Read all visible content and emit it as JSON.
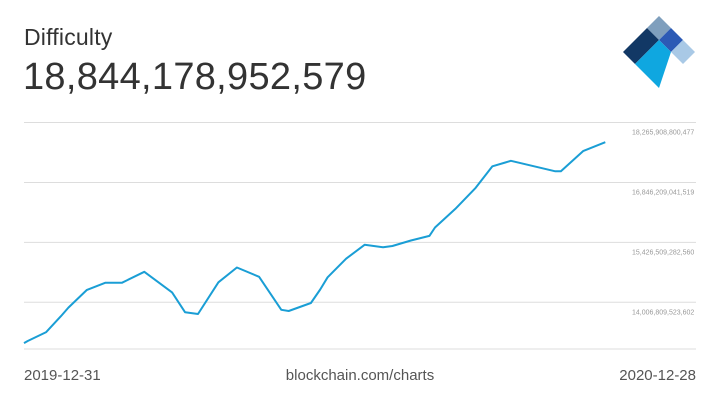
{
  "header": {
    "title": "Difficulty",
    "current_value": "18,844,178,952,579"
  },
  "footer": {
    "start_date": "2019-12-31",
    "source": "blockchain.com/charts",
    "end_date": "2020-12-28"
  },
  "logo": {
    "icon": "blockchain-logo-icon",
    "colors": [
      "#123865",
      "#7f9fbd",
      "#2c5ab5",
      "#0fa7e0",
      "#a9c9e6"
    ]
  },
  "chart_data": {
    "type": "line",
    "x_type": "date",
    "xlim": [
      "2019-12-31",
      "2020-12-28"
    ],
    "ylim": [
      12900000000000,
      18800000000000
    ],
    "gridlines": [
      18265908800477,
      16846209041519,
      15426509282560,
      14006809523602
    ],
    "tick_labels": [
      "18,265,908,800,477",
      "16,846,209,041,519",
      "15,426,509,282,560",
      "14,006,809,523,602"
    ],
    "line_color": "#1a9ed5",
    "grid": true,
    "series": [
      {
        "x": [
          "2019-12-31",
          "2020-01-02",
          "2020-01-12",
          "2020-01-20",
          "2020-01-24",
          "2020-02-03",
          "2020-02-13",
          "2020-02-22",
          "2020-03-05",
          "2020-03-20",
          "2020-03-27",
          "2020-04-03",
          "2020-04-14",
          "2020-04-24",
          "2020-05-06",
          "2020-05-18",
          "2020-05-22",
          "2020-06-03",
          "2020-06-08",
          "2020-06-12",
          "2020-06-22",
          "2020-07-02",
          "2020-07-12",
          "2020-07-17",
          "2020-07-27",
          "2020-08-06",
          "2020-08-09",
          "2020-08-20",
          "2020-08-31",
          "2020-09-09",
          "2020-09-16",
          "2020-09-19",
          "2020-10-13",
          "2020-10-16",
          "2020-10-28",
          "2020-11-09"
        ],
        "y": [
          13040000000000,
          13090000000000,
          13300000000000,
          13680000000000,
          13880000000000,
          14300000000000,
          14470000000000,
          14470000000000,
          14730000000000,
          14240000000000,
          13770000000000,
          13730000000000,
          14480000000000,
          14830000000000,
          14610000000000,
          13830000000000,
          13800000000000,
          13990000000000,
          14310000000000,
          14600000000000,
          15040000000000,
          15370000000000,
          15310000000000,
          15340000000000,
          15470000000000,
          15580000000000,
          15780000000000,
          16220000000000,
          16720000000000,
          17230000000000,
          17320000000000,
          17360000000000,
          17110000000000,
          17110000000000,
          17590000000000,
          17800000000000
        ]
      }
    ]
  }
}
